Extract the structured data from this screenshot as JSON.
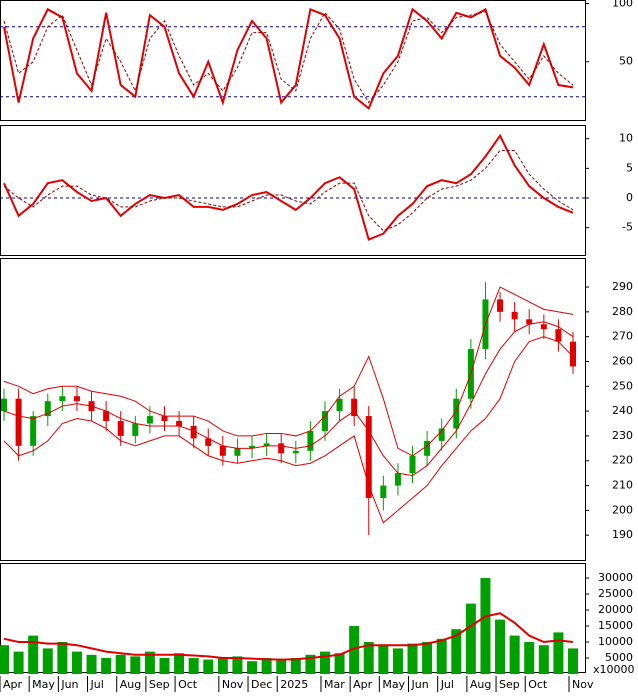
{
  "chart_data": [
    {
      "type": "line",
      "ylim": [
        0,
        103
      ],
      "yticks": [
        50,
        100
      ],
      "levels": [
        20,
        80
      ],
      "series": [
        {
          "color": "#e00000",
          "values": [
            80,
            15,
            70,
            95,
            88,
            40,
            25,
            92,
            30,
            20,
            90,
            80,
            40,
            20,
            50,
            15,
            60,
            85,
            70,
            15,
            30,
            95,
            90,
            70,
            20,
            10,
            40,
            55,
            95,
            85,
            70,
            92,
            88,
            95,
            55,
            45,
            30,
            65,
            30,
            28
          ]
        },
        {
          "color": "#8b0000",
          "values": [
            85,
            40,
            50,
            80,
            90,
            60,
            30,
            70,
            50,
            25,
            70,
            85,
            55,
            30,
            40,
            25,
            45,
            75,
            75,
            35,
            25,
            70,
            92,
            78,
            35,
            15,
            30,
            50,
            85,
            88,
            75,
            88,
            90,
            93,
            65,
            50,
            35,
            55,
            40,
            30
          ]
        }
      ]
    },
    {
      "type": "line",
      "ylim": [
        -9.6,
        12.3
      ],
      "yticks": [
        10,
        5,
        0,
        -5
      ],
      "levels": [
        0
      ],
      "series": [
        {
          "color": "#e00000",
          "values": [
            2.5,
            -3,
            -1,
            2.5,
            3,
            1,
            -0.5,
            0,
            -3,
            -1,
            0.5,
            0,
            0.5,
            -1.5,
            -1.5,
            -2,
            -1,
            0.5,
            1,
            -0.5,
            -2,
            0,
            2.5,
            3.5,
            1.5,
            -7,
            -6,
            -3,
            -1,
            2,
            3,
            2.5,
            4,
            7,
            10.5,
            5.5,
            2,
            0,
            -1.5,
            -2.5
          ]
        },
        {
          "color": "#8b0000",
          "values": [
            2,
            0,
            -1.5,
            0.5,
            2,
            2,
            0.5,
            0,
            -1.5,
            -1.5,
            -0.5,
            0,
            0,
            -0.5,
            -1,
            -1.5,
            -1.5,
            -0.5,
            0.5,
            0.5,
            -0.5,
            -1,
            1,
            2.5,
            2.5,
            -3,
            -5.5,
            -4.5,
            -2.5,
            0,
            1.5,
            2,
            3,
            5,
            8,
            8,
            4,
            1.5,
            -0.5,
            -2
          ]
        }
      ]
    },
    {
      "type": "candlestick",
      "ylim": [
        180,
        301.7
      ],
      "yticks": [
        190,
        200,
        210,
        220,
        230,
        240,
        250,
        260,
        270,
        280,
        290
      ],
      "up_color": "#00a000",
      "down_color": "#e00000",
      "open": [
        240,
        245,
        226,
        238,
        244,
        246,
        244,
        240,
        236,
        230,
        235,
        238,
        236,
        234,
        229,
        226,
        222,
        225,
        226,
        227,
        223,
        224,
        232,
        240,
        245,
        238,
        205,
        210,
        215,
        222,
        228,
        233,
        245,
        265,
        285,
        280,
        277,
        275,
        273,
        268
      ],
      "high": [
        249,
        249,
        240,
        247,
        250,
        250,
        248,
        244,
        240,
        238,
        242,
        242,
        240,
        238,
        233,
        230,
        229,
        230,
        231,
        231,
        228,
        236,
        244,
        249,
        250,
        242,
        214,
        219,
        226,
        232,
        237,
        249,
        269,
        292,
        288,
        284,
        281,
        279,
        277,
        272
      ],
      "low": [
        236,
        220,
        222,
        234,
        240,
        240,
        236,
        232,
        226,
        227,
        231,
        232,
        230,
        225,
        222,
        218,
        219,
        221,
        222,
        219,
        219,
        220,
        228,
        236,
        234,
        190,
        200,
        206,
        211,
        218,
        224,
        229,
        241,
        261,
        276,
        272,
        271,
        269,
        264,
        255
      ],
      "close": [
        245,
        226,
        238,
        244,
        246,
        244,
        240,
        236,
        230,
        235,
        238,
        236,
        234,
        229,
        226,
        222,
        225,
        226,
        227,
        223,
        224,
        232,
        240,
        245,
        238,
        205,
        210,
        215,
        222,
        228,
        233,
        245,
        265,
        285,
        280,
        277,
        275,
        273,
        268,
        258
      ],
      "series": [
        {
          "color": "#e00000",
          "values": [
            252,
            250,
            247,
            249,
            250,
            250,
            248,
            247,
            246,
            244,
            240,
            238,
            238,
            238,
            236,
            232,
            230,
            230,
            231,
            231,
            230,
            232,
            238,
            246,
            250,
            262,
            245,
            225,
            222,
            226,
            232,
            240,
            255,
            275,
            290,
            287,
            284,
            281,
            280,
            279
          ]
        },
        {
          "color": "#e00000",
          "values": [
            240,
            238,
            237,
            239,
            242,
            243,
            242,
            240,
            237,
            235,
            234,
            234,
            234,
            232,
            229,
            226,
            225,
            225,
            226,
            226,
            225,
            226,
            230,
            236,
            240,
            232,
            222,
            215,
            214,
            218,
            225,
            232,
            243,
            255,
            265,
            272,
            275,
            276,
            274,
            270
          ]
        },
        {
          "color": "#e00000",
          "values": [
            228,
            222,
            224,
            228,
            235,
            237,
            236,
            233,
            228,
            226,
            228,
            230,
            230,
            226,
            222,
            220,
            219,
            220,
            221,
            220,
            218,
            219,
            222,
            226,
            230,
            210,
            195,
            200,
            205,
            210,
            218,
            225,
            232,
            237,
            245,
            260,
            268,
            270,
            268,
            262
          ]
        }
      ]
    },
    {
      "type": "bar",
      "ylim": [
        0,
        34700
      ],
      "yticks": [
        5000,
        10000,
        15000,
        20000,
        25000,
        30000
      ],
      "axis_unit": "x10000",
      "color": "#00a000",
      "categories": [
        "Apr",
        null,
        "May",
        null,
        "Jun",
        null,
        "Jul",
        null,
        "Aug",
        null,
        "Sep",
        null,
        "Oct",
        null,
        null,
        "Nov",
        null,
        "Dec",
        null,
        "2025",
        null,
        null,
        "Mar",
        null,
        "Apr",
        null,
        "May",
        null,
        "Jun",
        null,
        "Jul",
        null,
        "Aug",
        null,
        "Sep",
        null,
        "Oct",
        null,
        null,
        "Nov"
      ],
      "values": [
        9000,
        7000,
        12000,
        8000,
        10000,
        7000,
        6000,
        5000,
        6000,
        5500,
        7000,
        5000,
        6500,
        5000,
        4500,
        5000,
        5500,
        4000,
        5000,
        4500,
        5000,
        6000,
        7000,
        6500,
        15000,
        10000,
        9000,
        8000,
        9500,
        10000,
        11000,
        14000,
        22000,
        30000,
        17000,
        12000,
        10000,
        9000,
        13000,
        8000
      ],
      "series": [
        {
          "color": "#e00000",
          "values": [
            11000,
            10000,
            10000,
            9500,
            9500,
            9000,
            8000,
            7000,
            6500,
            6000,
            6000,
            6000,
            6000,
            5800,
            5500,
            5000,
            5000,
            4800,
            4600,
            4500,
            4600,
            5000,
            5500,
            6000,
            8000,
            9000,
            9000,
            9000,
            9000,
            9500,
            10500,
            12000,
            15000,
            18000,
            19000,
            16000,
            12000,
            10000,
            10500,
            10000
          ]
        }
      ]
    }
  ]
}
